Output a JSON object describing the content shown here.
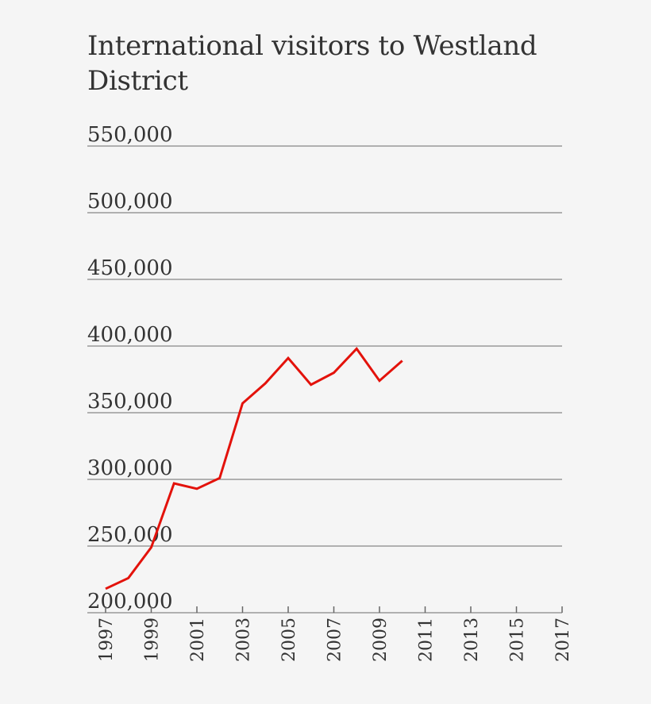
{
  "chart_data": {
    "type": "line",
    "title": "International visitors to Westland District",
    "xlabel": "",
    "ylabel": "",
    "ylim": [
      200000,
      550000
    ],
    "y_ticks": [
      550000,
      500000,
      450000,
      400000,
      350000,
      300000,
      250000,
      200000
    ],
    "y_tick_labels": [
      "550,000",
      "500,000",
      "450,000",
      "400,000",
      "350,000",
      "300,000",
      "250,000",
      "200,000"
    ],
    "xlim": [
      1996.2,
      2017
    ],
    "x_ticks": [
      1997,
      1999,
      2001,
      2003,
      2005,
      2007,
      2009,
      2011,
      2013,
      2015,
      2017
    ],
    "x_tick_labels": [
      "1997",
      "1999",
      "2001",
      "2003",
      "2005",
      "2007",
      "2009",
      "2011",
      "2013",
      "2015",
      "2017"
    ],
    "grid": true,
    "series": [
      {
        "name": "International visitors",
        "color": "#e3120b",
        "x": [
          1997,
          1998,
          1999,
          2000,
          2001,
          2002,
          2003,
          2004,
          2005,
          2006,
          2007,
          2008,
          2009,
          2010
        ],
        "values": [
          218000,
          226000,
          249000,
          297000,
          293000,
          301000,
          357000,
          372000,
          391000,
          371000,
          380000,
          398000,
          374000,
          389000
        ]
      }
    ]
  }
}
